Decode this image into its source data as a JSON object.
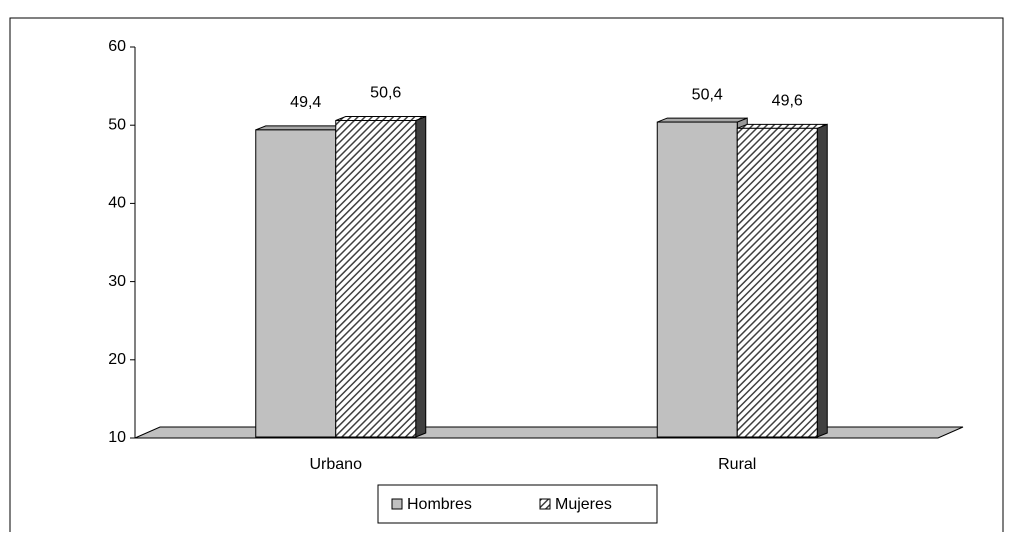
{
  "chart_data": {
    "type": "bar3d",
    "categories": [
      "Urbano",
      "Rural"
    ],
    "series": [
      {
        "name": "Hombres",
        "color": "#c0c0c0",
        "values": [
          49.4,
          50.4
        ],
        "value_labels": [
          "49,4",
          "50,4"
        ]
      },
      {
        "name": "Mujeres",
        "color": "#404040",
        "pattern": "diagonal-hatch",
        "values": [
          50.6,
          49.6
        ],
        "value_labels": [
          "50,6",
          "49,6"
        ]
      }
    ],
    "ylim": [
      10,
      60
    ],
    "yticks": [
      10,
      20,
      30,
      40,
      50,
      60
    ],
    "grid": false,
    "legend": "bottom"
  }
}
